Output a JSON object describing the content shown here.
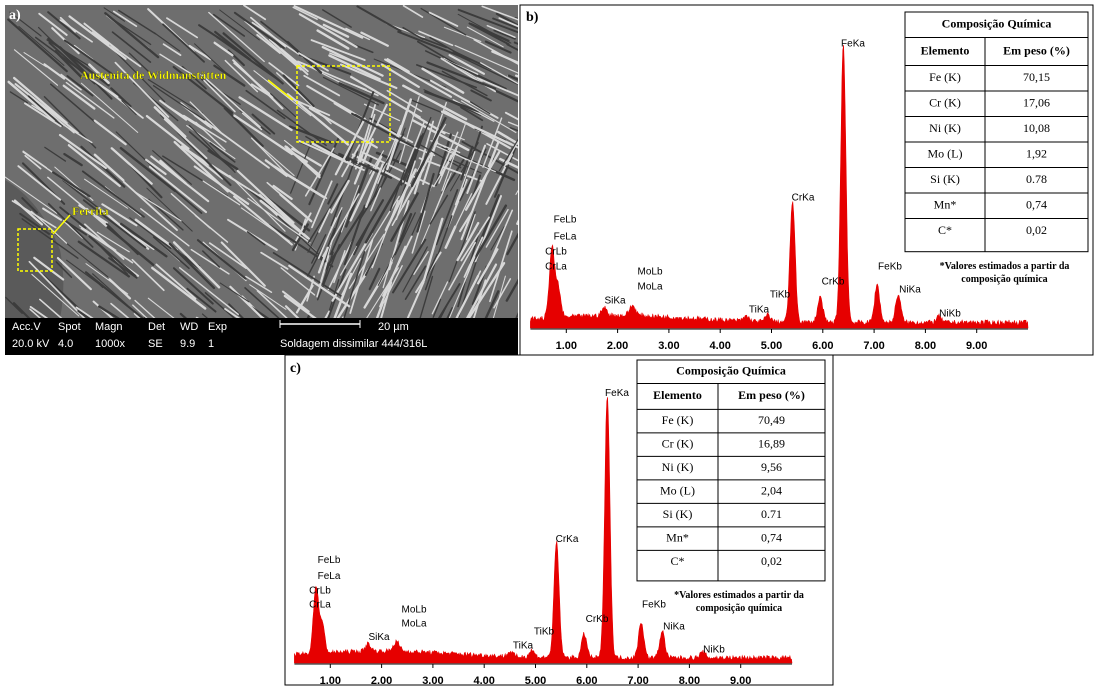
{
  "panel_a": {
    "label": "a)",
    "annotations": [
      "Austenita de Widmanstätten",
      "Ferrita"
    ],
    "info_bar": {
      "row1": [
        "Acc.V",
        "Spot",
        "Magn",
        "Det",
        "WD",
        "Exp"
      ],
      "row2": [
        "20.0 kV",
        "4.0",
        "1000x",
        "SE",
        "9.9",
        "1"
      ],
      "scale": "20 µm",
      "sample": "Soldagem dissimilar 444/316L"
    }
  },
  "panel_b": {
    "label": "b)",
    "peak_labels": [
      "FeLb",
      "FeLa",
      "CrLb",
      "CrLa",
      "SiKa",
      "MoLb",
      "MoLa",
      "TiKa",
      "TiKb",
      "CrKa",
      "CrKb",
      "FeKa",
      "FeKb",
      "NiKa",
      "NiKb"
    ],
    "x_tick_labels": [
      "1.00",
      "2.00",
      "3.00",
      "4.00",
      "5.00",
      "6.00",
      "7.00",
      "8.00",
      "9.00"
    ],
    "table": {
      "title": "Composição Química",
      "header": [
        "Elemento",
        "Em peso (%)"
      ],
      "rows": [
        [
          "Fe (K)",
          "70,15"
        ],
        [
          "Cr (K)",
          "17,06"
        ],
        [
          "Ni (K)",
          "10,08"
        ],
        [
          "Mo (L)",
          "1,92"
        ],
        [
          "Si (K)",
          "0.78"
        ],
        [
          "Mn*",
          "0,74"
        ],
        [
          "C*",
          "0,02"
        ]
      ]
    },
    "note": [
      "*Valores estimados a partir da",
      "composição química"
    ]
  },
  "panel_c": {
    "label": "c)",
    "peak_labels": [
      "FeLb",
      "FeLa",
      "CrLb",
      "CrLa",
      "SiKa",
      "MoLb",
      "MoLa",
      "TiKa",
      "TiKb",
      "CrKa",
      "CrKb",
      "FeKa",
      "FeKb",
      "NiKa",
      "NiKb"
    ],
    "x_tick_labels": [
      "1.00",
      "2.00",
      "3.00",
      "4.00",
      "5.00",
      "6.00",
      "7.00",
      "8.00",
      "9.00"
    ],
    "table": {
      "title": "Composição Química",
      "header": [
        "Elemento",
        "Em peso (%)"
      ],
      "rows": [
        [
          "Fe (K)",
          "70,49"
        ],
        [
          "Cr (K)",
          "16,89"
        ],
        [
          "Ni (K)",
          "9,56"
        ],
        [
          "Mo (L)",
          "2,04"
        ],
        [
          "Si (K)",
          "0.71"
        ],
        [
          "Mn*",
          "0,74"
        ],
        [
          "C*",
          "0,02"
        ]
      ]
    },
    "note": [
      "*Valores estimados a partir da",
      "composição química"
    ]
  }
}
